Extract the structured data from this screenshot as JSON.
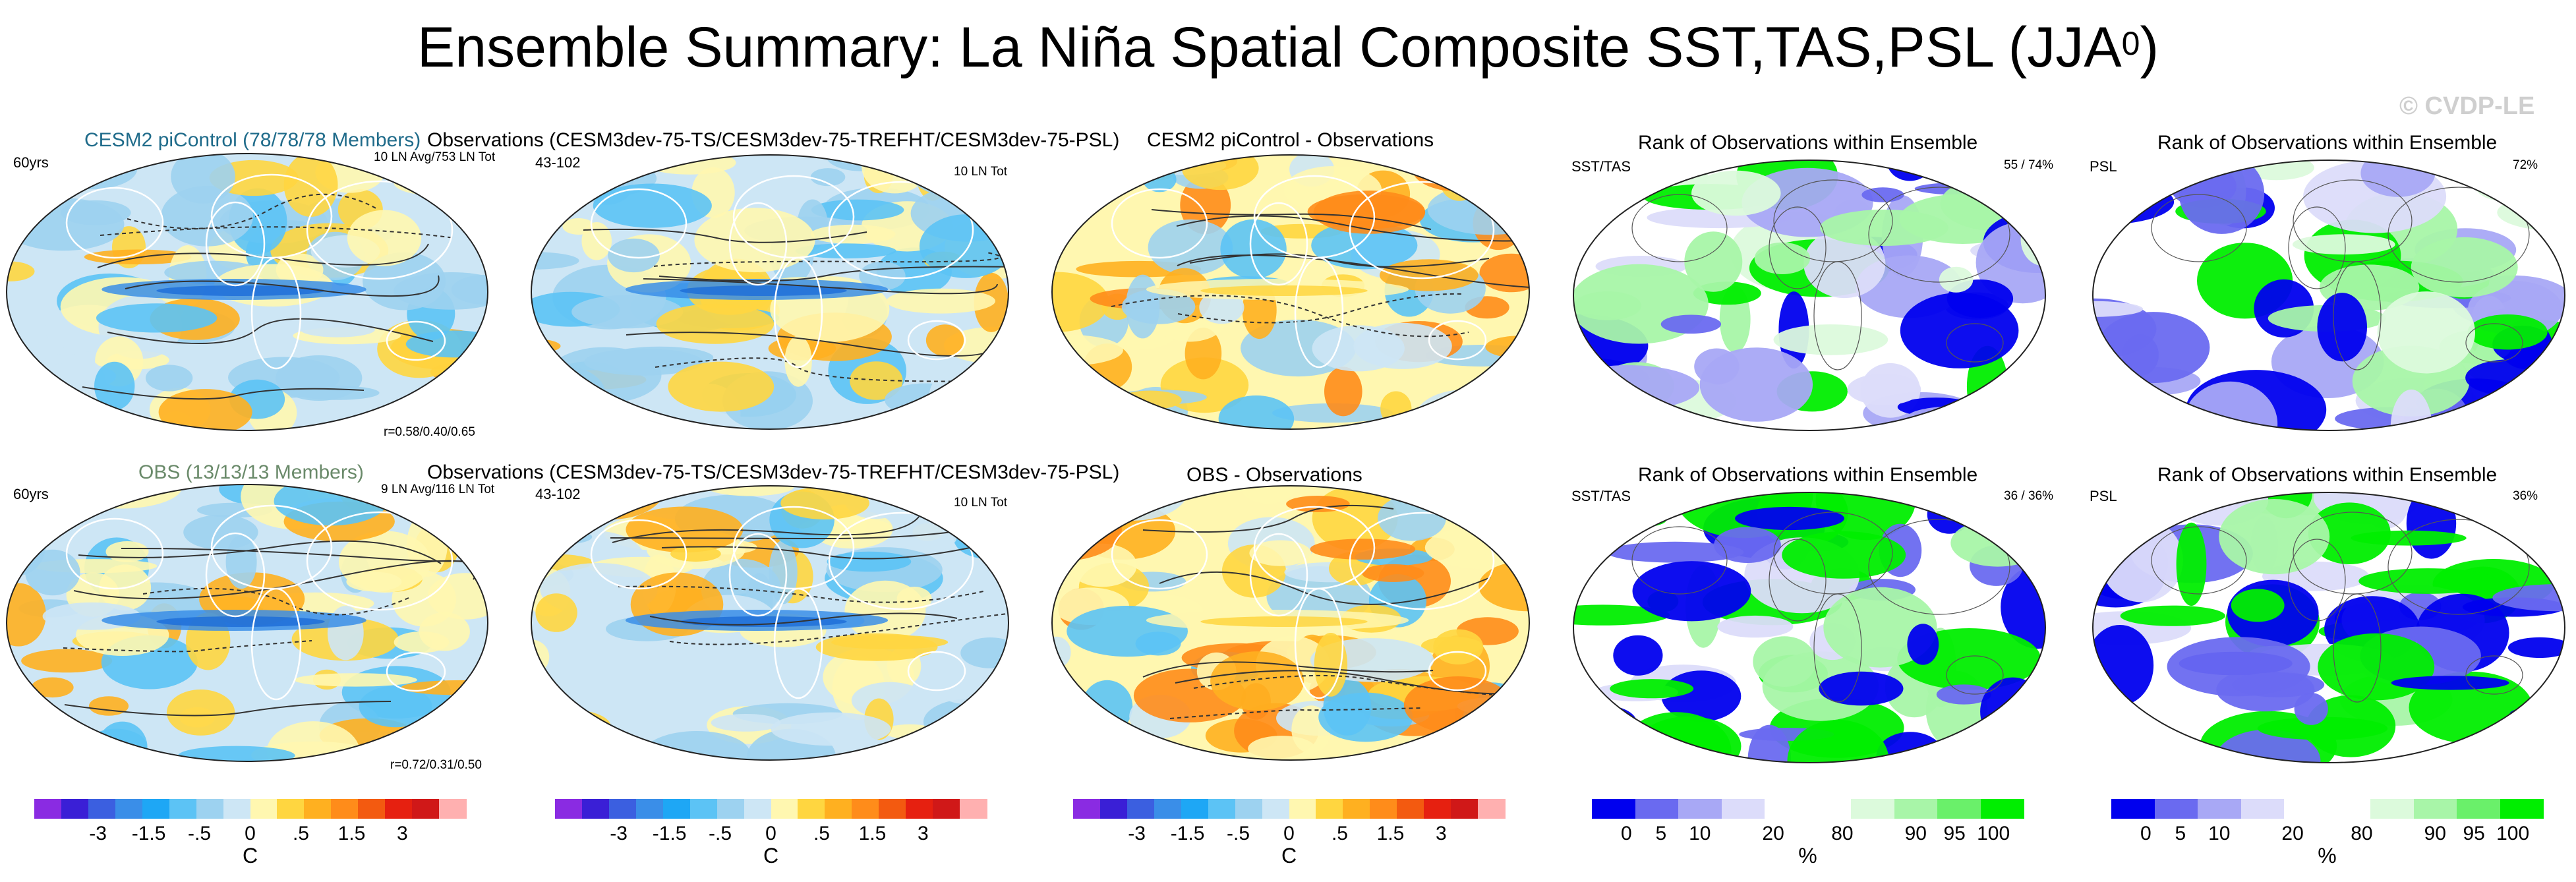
{
  "title": {
    "main": "Ensemble Summary: La Niña Spatial Composite SST,TAS,PSL (JJA",
    "sup": "0",
    "end": ")"
  },
  "watermark": "© CVDP-LE",
  "rows": [
    {
      "ens_title": "CESM2 piControl (78/78/78 Members)",
      "ens_years": "60yrs",
      "ens_avg": "10 LN Avg/753 LN Tot",
      "ens_corr": "r=0.58/0.40/0.65",
      "obs_title": "Observations (CESM3dev-75-TS/CESM3dev-75-TREFHT/CESM3dev-75-PSL)",
      "obs_years": "43-102",
      "obs_tot": "10 LN Tot",
      "diff_title": "CESM2 piControl - Observations",
      "rank1_title": "Rank of Observations within Ensemble",
      "rank1_var": "SST/TAS",
      "rank1_pct": "55 /  74%",
      "rank2_title": "Rank of Observations within Ensemble",
      "rank2_var": "PSL",
      "rank2_pct": "72%"
    },
    {
      "ens_title": "OBS (13/13/13 Members)",
      "ens_years": "60yrs",
      "ens_avg": "9 LN Avg/116 LN Tot",
      "ens_corr": "r=0.72/0.31/0.50",
      "obs_title": "Observations (CESM3dev-75-TS/CESM3dev-75-TREFHT/CESM3dev-75-PSL)",
      "obs_years": "43-102",
      "obs_tot": "10 LN Tot",
      "diff_title": "OBS - Observations",
      "rank1_title": "Rank of Observations within Ensemble",
      "rank1_var": "SST/TAS",
      "rank1_pct": "36 /  36%",
      "rank2_title": "Rank of Observations within Ensemble",
      "rank2_var": "PSL",
      "rank2_pct": "36%"
    }
  ],
  "chart_data": [
    {
      "type": "heatmap",
      "name": "SST/TAS composite colorbar",
      "unit": "C",
      "tick_labels": [
        "-3",
        "-1.5",
        "-.5",
        "0",
        ".5",
        "1.5",
        "3"
      ],
      "colors": [
        "#8a2be2",
        "#3a1fd6",
        "#3b5fe0",
        "#3a8ee8",
        "#1ea7f5",
        "#5cc3f5",
        "#9dd2f0",
        "#cde6f5",
        "#fff7b0",
        "#ffd640",
        "#ffb020",
        "#ff8c1a",
        "#f35a10",
        "#e62010",
        "#d01818",
        "#ffb0b0"
      ]
    },
    {
      "type": "heatmap",
      "name": "Rank colorbar",
      "unit": "%",
      "tick_labels": [
        "0",
        "5",
        "10",
        "20",
        "80",
        "90",
        "95",
        "100"
      ],
      "colors": [
        "#0000ee",
        "#6a6af0",
        "#a8a8f5",
        "#dcdcfa",
        "#ffffff",
        "#ffffff",
        "#dcfadc",
        "#a8f5a8",
        "#6af06a",
        "#00ee00"
      ]
    }
  ],
  "colors": {
    "blue_dark": "#3a8ee8",
    "blue_mid": "#9dd2f0",
    "blue_light": "#cde6f5",
    "yellow": "#fff7b0",
    "orange": "#ffb020",
    "rank_blue": "#0000ee",
    "rank_green": "#00ee00",
    "ens_title_row1": "#1f6b8a",
    "ens_title_row2": "#6a8a6a"
  }
}
